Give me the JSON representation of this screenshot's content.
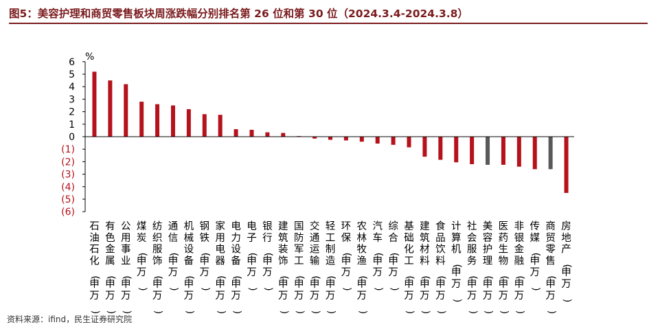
{
  "title": "图5：美容护理和商贸零售板块周涨跌幅分别排名第 26 位和第 30 位（2024.3.4-2024.3.8）",
  "source": "资料来源：ifind，民生证券研究院",
  "colors": {
    "title": "#7a1a1c",
    "bar": "#b5121b",
    "highlight": "#595959",
    "negative_tick": "#b5121b",
    "axis": "#000000"
  },
  "chart_data": {
    "type": "bar",
    "ylabel": "%",
    "ylim": [
      -6,
      6
    ],
    "yticks": [
      {
        "value": 6,
        "label": "6"
      },
      {
        "value": 5,
        "label": "5"
      },
      {
        "value": 4,
        "label": "4"
      },
      {
        "value": 3,
        "label": "3"
      },
      {
        "value": 2,
        "label": "2"
      },
      {
        "value": 1,
        "label": "1"
      },
      {
        "value": 0,
        "label": "0"
      },
      {
        "value": -1,
        "label": "(1)"
      },
      {
        "value": -2,
        "label": "(2)"
      },
      {
        "value": -3,
        "label": "(3)"
      },
      {
        "value": -4,
        "label": "(4)"
      },
      {
        "value": -5,
        "label": "(5)"
      },
      {
        "value": -6,
        "label": "(6)"
      }
    ],
    "categories": [
      "石油石化(申万)",
      "有色金属(申万)",
      "公用事业(申万)",
      "煤炭(申万)",
      "纺织服饰(申万)",
      "通信(申万)",
      "机械设备(申万)",
      "钢铁(申万)",
      "家用电器(申万)",
      "电力设备(申万)",
      "电子(申万)",
      "银行(申万)",
      "建筑装饰(申万)",
      "国防军工(申万)",
      "交通运输(申万)",
      "轻工制造(申万)",
      "环保(申万)",
      "农林牧渔(申万)",
      "汽车(申万)",
      "综合(申万)",
      "基础化工(申万)",
      "建筑材料(申万)",
      "食品饮料(申万)",
      "计算机(申万)",
      "社会服务(申万)",
      "美容护理(申万)",
      "医药生物(申万)",
      "非银金融(申万)",
      "传媒(申万)",
      "商贸零售(申万)",
      "房地产(申万)"
    ],
    "values": [
      5.2,
      4.5,
      4.2,
      2.8,
      2.6,
      2.5,
      2.2,
      1.8,
      1.75,
      0.6,
      0.55,
      0.35,
      0.3,
      0.05,
      -0.15,
      -0.25,
      -0.3,
      -0.4,
      -0.55,
      -0.65,
      -0.85,
      -1.6,
      -1.85,
      -2.05,
      -2.2,
      -2.25,
      -2.25,
      -2.4,
      -2.6,
      -2.6,
      -4.5
    ],
    "highlighted": [
      "美容护理(申万)",
      "商贸零售(申万)"
    ],
    "grid": false,
    "legend": "none"
  }
}
